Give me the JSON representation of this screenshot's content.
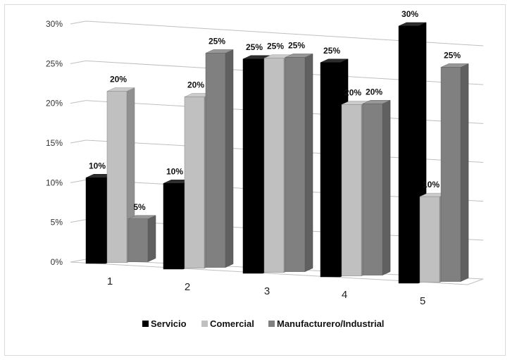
{
  "chart_data": {
    "type": "bar",
    "categories": [
      "1",
      "2",
      "3",
      "4",
      "5"
    ],
    "series": [
      {
        "name": "Servicio",
        "values": [
          10,
          10,
          25,
          25,
          30
        ],
        "labels": [
          "10%",
          "10%",
          "25%",
          "25%",
          "30%"
        ]
      },
      {
        "name": "Comercial",
        "values": [
          20,
          20,
          25,
          20,
          10
        ],
        "labels": [
          "20%",
          "20%",
          "25%",
          "20%",
          "10%"
        ]
      },
      {
        "name": "Manufacturero/Industrial",
        "values": [
          5,
          25,
          25,
          20,
          25
        ],
        "labels": [
          "5%",
          "25%",
          "25%",
          "20%",
          "25%"
        ]
      }
    ],
    "ylim": [
      0,
      30
    ],
    "yticks": [
      "0%",
      "5%",
      "10%",
      "15%",
      "20%",
      "25%",
      "30%"
    ],
    "xlabel": "",
    "ylabel": "",
    "grid": true,
    "legend_position": "bottom",
    "colors": {
      "Servicio": "#000000",
      "Comercial": "#c0c0c0",
      "Manufacturero/Industrial": "#808080",
      "grid": "#bfbfbf"
    }
  }
}
